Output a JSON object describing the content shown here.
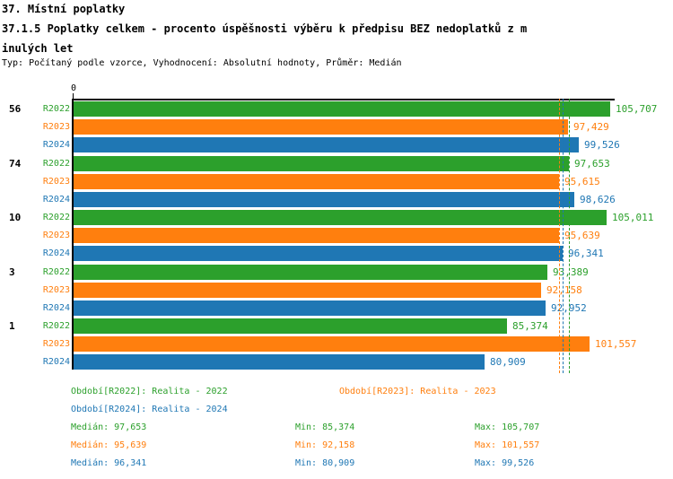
{
  "header": {
    "title_line1": "37. Místní poplatky",
    "title_line2": "37.1.5 Poplatky celkem - procento úspěšnosti výběru k předpisu BEZ nedoplatků z m",
    "title_line3": "inulých let",
    "meta_line": "Typ: Počítaný podle vzorce, Vyhodnocení: Absolutní hodnoty, Průměr: Medián"
  },
  "chart_data": {
    "type": "bar",
    "orientation": "horizontal",
    "title": "37.1.5 Poplatky celkem - procento úspěšnosti výběru k předpisu BEZ nedoplatků z minulých let",
    "xlabel": "",
    "ylabel": "",
    "x_axis": {
      "origin_label": "0",
      "xlim_estimate": [
        0,
        106800
      ],
      "grid": false
    },
    "legend_position": "bottom",
    "series_colors": {
      "R2022": "#2ca02c",
      "R2023": "#ff7f0e",
      "R2024": "#1f77b4"
    },
    "groups": [
      {
        "label": "56",
        "bars": [
          {
            "year": "R2022",
            "value": 105707,
            "display": "105,707"
          },
          {
            "year": "R2023",
            "value": 97429,
            "display": "97,429"
          },
          {
            "year": "R2024",
            "value": 99526,
            "display": "99,526"
          }
        ]
      },
      {
        "label": "74",
        "bars": [
          {
            "year": "R2022",
            "value": 97653,
            "display": "97,653"
          },
          {
            "year": "R2023",
            "value": 95615,
            "display": "95,615"
          },
          {
            "year": "R2024",
            "value": 98626,
            "display": "98,626"
          }
        ]
      },
      {
        "label": "10",
        "bars": [
          {
            "year": "R2022",
            "value": 105011,
            "display": "105,011"
          },
          {
            "year": "R2023",
            "value": 95639,
            "display": "95,639"
          },
          {
            "year": "R2024",
            "value": 96341,
            "display": "96,341"
          }
        ]
      },
      {
        "label": "3",
        "bars": [
          {
            "year": "R2022",
            "value": 93389,
            "display": "93,389"
          },
          {
            "year": "R2023",
            "value": 92158,
            "display": "92,158"
          },
          {
            "year": "R2024",
            "value": 92952,
            "display": "92,952"
          }
        ]
      },
      {
        "label": "1",
        "bars": [
          {
            "year": "R2022",
            "value": 85374,
            "display": "85,374"
          },
          {
            "year": "R2023",
            "value": 101557,
            "display": "101,557"
          },
          {
            "year": "R2024",
            "value": 80909,
            "display": "80,909"
          }
        ]
      }
    ],
    "median_lines": [
      {
        "year": "R2022",
        "value": 97653,
        "color": "#2ca02c"
      },
      {
        "year": "R2023",
        "value": 95639,
        "color": "#ff7f0e"
      },
      {
        "year": "R2024",
        "value": 96341,
        "color": "#1f77b4"
      }
    ]
  },
  "legend": {
    "periods": [
      {
        "label": "Období[R2022]: Realita - 2022",
        "color": "#2ca02c"
      },
      {
        "label": "Období[R2023]: Realita - 2023",
        "color": "#ff7f0e"
      },
      {
        "label": "Období[R2024]: Realita - 2024",
        "color": "#1f77b4"
      }
    ],
    "stats": [
      {
        "median": "Medián: 97,653",
        "min": "Min: 85,374",
        "max": "Max: 105,707",
        "color": "#2ca02c"
      },
      {
        "median": "Medián: 95,639",
        "min": "Min: 92,158",
        "max": "Max: 101,557",
        "color": "#ff7f0e"
      },
      {
        "median": "Medián: 96,341",
        "min": "Min: 80,909",
        "max": "Max: 99,526",
        "color": "#1f77b4"
      }
    ]
  }
}
